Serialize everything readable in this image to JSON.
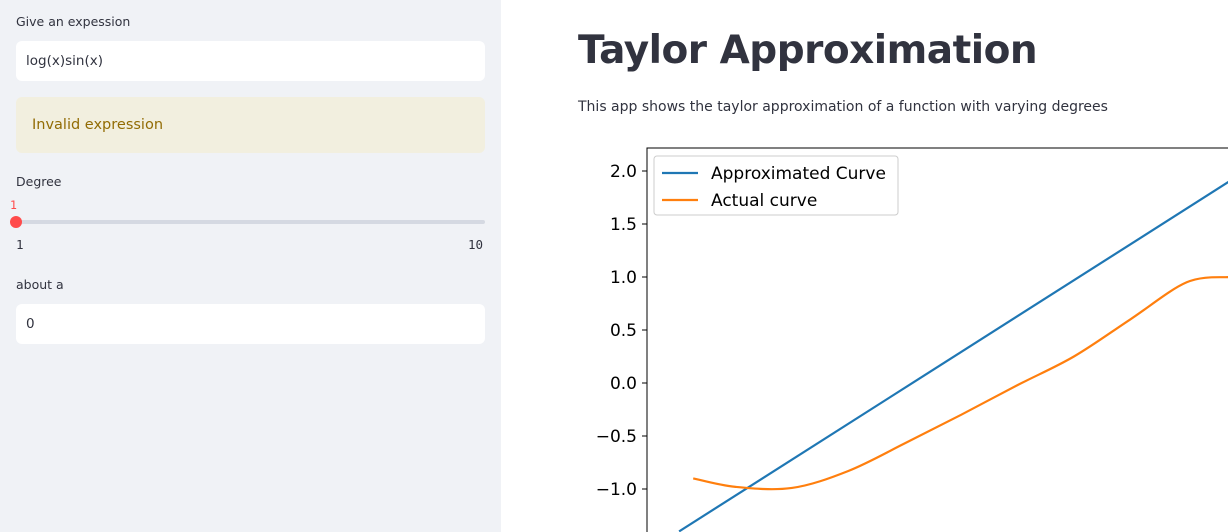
{
  "sidebar": {
    "expression_label": "Give an expession",
    "expression_value": "log(x)sin(x)",
    "warning_text": "Invalid expression",
    "degree_label": "Degree",
    "degree_value": "1",
    "degree_min": "1",
    "degree_max": "10",
    "about_label": "about a",
    "about_value": "0"
  },
  "main": {
    "title": "Taylor Approximation",
    "description": "This app shows the taylor approximation of a function with varying degrees"
  },
  "colors": {
    "approx": "#1f77b4",
    "actual": "#ff7f0e",
    "accent": "#ff4b4b"
  },
  "chart_data": {
    "type": "line",
    "title": "",
    "xlabel": "",
    "ylabel": "",
    "xlim": [
      -1.45,
      0.55
    ],
    "ylim": [
      -1.42,
      2.2
    ],
    "yticks": [
      2.0,
      1.5,
      1.0,
      0.5,
      0.0,
      -0.5,
      -1.0
    ],
    "ytick_labels": [
      "2.0",
      "1.5",
      "1.0",
      "0.5",
      "0.0",
      "−0.5",
      "−1.0"
    ],
    "legend_position": "top-left",
    "series": [
      {
        "name": "Approximated Curve",
        "color": "#1f77b4",
        "x": [
          -1.4,
          0.55
        ],
        "y": [
          -1.4,
          1.9
        ]
      },
      {
        "name": "Actual curve",
        "color": "#ff7f0e",
        "x": [
          -1.35,
          -1.2,
          -1.0,
          -0.8,
          -0.6,
          -0.4,
          -0.2,
          0.0,
          0.2,
          0.4,
          0.55
        ],
        "y": [
          -0.9,
          -0.98,
          -0.99,
          -0.83,
          -0.57,
          -0.3,
          -0.02,
          0.25,
          0.6,
          0.95,
          1.0
        ]
      }
    ]
  }
}
